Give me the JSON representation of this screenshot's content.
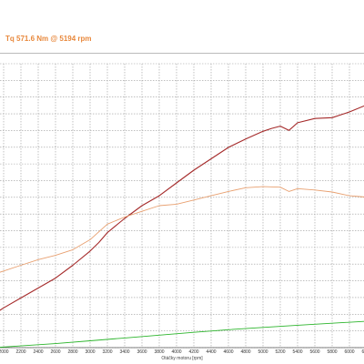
{
  "header": {
    "tq_readout": "Tq 571.6 Nm @ 5194 rpm"
  },
  "chart_data": {
    "type": "line",
    "title": "",
    "xlabel": "Otáčky motoru [rpm]",
    "ylabel": "",
    "xlim": [
      1900,
      6700
    ],
    "ylim": [
      0,
      1
    ],
    "grid": true,
    "x_ticks": [
      2000,
      2200,
      2400,
      2600,
      2800,
      3000,
      3200,
      3400,
      3600,
      3800,
      4000,
      4200,
      4400,
      4600,
      4800,
      5000,
      5200,
      5400,
      5600,
      5800,
      6000,
      6200
    ],
    "series": [
      {
        "color": "#a52a2a",
        "points": [
          [
            1900,
            0.12
          ],
          [
            2000,
            0.14
          ],
          [
            2200,
            0.175
          ],
          [
            2400,
            0.21
          ],
          [
            2600,
            0.245
          ],
          [
            2800,
            0.29
          ],
          [
            3000,
            0.34
          ],
          [
            3100,
            0.37
          ],
          [
            3200,
            0.405
          ],
          [
            3400,
            0.455
          ],
          [
            3600,
            0.5
          ],
          [
            3800,
            0.535
          ],
          [
            4000,
            0.58
          ],
          [
            4200,
            0.625
          ],
          [
            4400,
            0.665
          ],
          [
            4600,
            0.705
          ],
          [
            4800,
            0.735
          ],
          [
            5000,
            0.762
          ],
          [
            5100,
            0.772
          ],
          [
            5200,
            0.78
          ],
          [
            5300,
            0.765
          ],
          [
            5400,
            0.792
          ],
          [
            5600,
            0.807
          ],
          [
            5800,
            0.81
          ],
          [
            6000,
            0.83
          ],
          [
            6200,
            0.855
          ],
          [
            6400,
            0.875
          ]
        ]
      },
      {
        "color": "#e8a070",
        "points": [
          [
            1900,
            0.26
          ],
          [
            2000,
            0.27
          ],
          [
            2200,
            0.29
          ],
          [
            2400,
            0.31
          ],
          [
            2600,
            0.325
          ],
          [
            2800,
            0.345
          ],
          [
            3000,
            0.38
          ],
          [
            3200,
            0.435
          ],
          [
            3400,
            0.46
          ],
          [
            3600,
            0.48
          ],
          [
            3800,
            0.5
          ],
          [
            4000,
            0.505
          ],
          [
            4200,
            0.52
          ],
          [
            4400,
            0.535
          ],
          [
            4600,
            0.55
          ],
          [
            4800,
            0.563
          ],
          [
            5000,
            0.567
          ],
          [
            5200,
            0.565
          ],
          [
            5300,
            0.55
          ],
          [
            5400,
            0.56
          ],
          [
            5600,
            0.555
          ],
          [
            5800,
            0.548
          ],
          [
            6000,
            0.535
          ],
          [
            6200,
            0.53
          ],
          [
            6400,
            0.525
          ]
        ]
      },
      {
        "color": "#2db52d",
        "points": [
          [
            1900,
            0.0
          ],
          [
            2200,
            0.006
          ],
          [
            2600,
            0.014
          ],
          [
            3000,
            0.024
          ],
          [
            3400,
            0.034
          ],
          [
            3800,
            0.044
          ],
          [
            4200,
            0.054
          ],
          [
            4600,
            0.063
          ],
          [
            5000,
            0.071
          ],
          [
            5400,
            0.079
          ],
          [
            5800,
            0.086
          ],
          [
            6200,
            0.093
          ],
          [
            6400,
            0.099
          ]
        ]
      }
    ]
  }
}
